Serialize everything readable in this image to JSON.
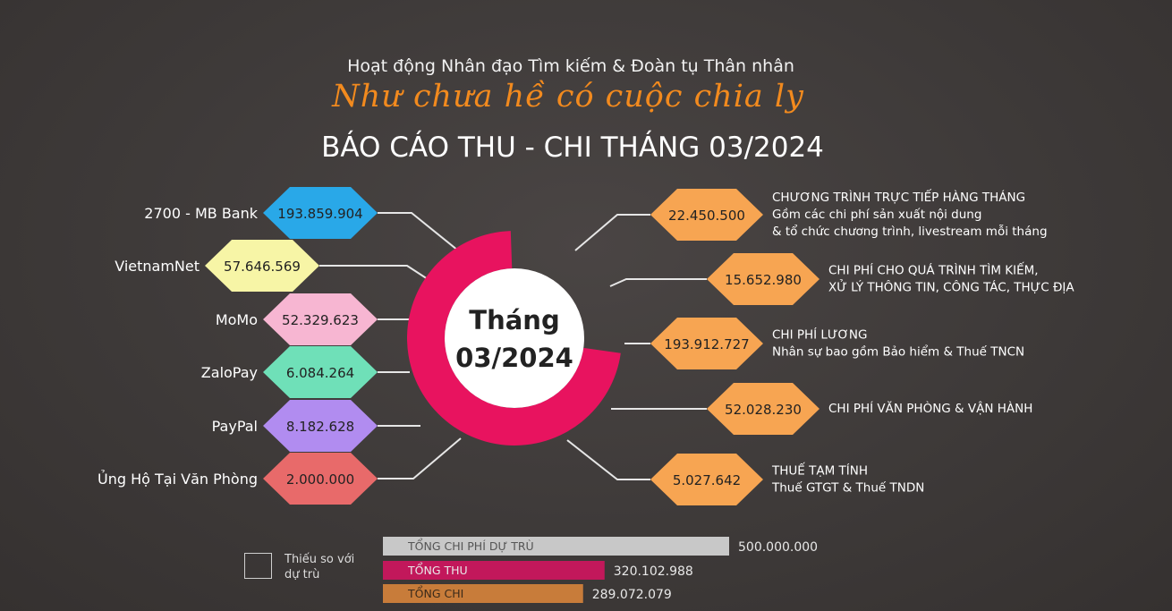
{
  "header": {
    "subtitle": "Hoạt động Nhân đạo Tìm kiếm & Đoàn tụ Thân nhân",
    "slogan": "Như chưa hề có cuộc chia ly",
    "title": "BÁO CÁO THU - CHI THÁNG 03/2024"
  },
  "center": {
    "line1": "Tháng",
    "line2": "03/2024"
  },
  "colors": {
    "ring": "#e8135f",
    "ring_dark": "#c10f52",
    "expense_hex": "#f7a552",
    "bar_plan": "#c8c8c8",
    "bar_income": "#c2185b",
    "bar_spend": "#c87c3a"
  },
  "chart_data": {
    "type": "table",
    "title": "BÁO CÁO THU - CHI THÁNG 03/2024",
    "income": [
      {
        "label": "2700 - MB Bank",
        "value": "193.859.904",
        "color": "#29a8e8"
      },
      {
        "label": "VietnamNet",
        "value": "57.646.569",
        "color": "#f7f5a6"
      },
      {
        "label": "MoMo",
        "value": "52.329.623",
        "color": "#f7b6d2"
      },
      {
        "label": "ZaloPay",
        "value": "6.084.264",
        "color": "#6fe0b8"
      },
      {
        "label": "PayPal",
        "value": "8.182.628",
        "color": "#b18cf0"
      },
      {
        "label": "Ủng Hộ  Tại Văn Phòng",
        "value": "2.000.000",
        "color": "#e86a6a"
      }
    ],
    "expenses": [
      {
        "value": "22.450.500",
        "line1": "CHƯƠNG TRÌNH TRỰC TIẾP HÀNG THÁNG",
        "line2": "Gồm các chi phí sản xuất nội dung",
        "line3": "& tổ chức chương trình, livestream mỗi tháng"
      },
      {
        "value": "15.652.980",
        "line1": "CHI PHÍ CHO QUÁ TRÌNH TÌM KIẾM,",
        "line2": "XỬ LÝ THÔNG TIN, CÔNG TÁC, THỰC ĐỊA",
        "line3": ""
      },
      {
        "value": "193.912.727",
        "line1": "CHI PHÍ LƯƠNG",
        "line2": "Nhân sự bao gồm Bảo hiểm & Thuế TNCN",
        "line3": ""
      },
      {
        "value": "52.028.230",
        "line1": "CHI PHÍ VĂN PHÒNG & VẬN HÀNH",
        "line2": "",
        "line3": ""
      },
      {
        "value": "5.027.642",
        "line1": "THUẾ TẠM TÍNH",
        "line2": "Thuế GTGT & Thuế TNDN",
        "line3": ""
      }
    ],
    "totals": [
      {
        "label": "TỔNG CHI PHÍ DỰ TRÙ",
        "value": "500.000.000",
        "amount": 500000000
      },
      {
        "label": "TỔNG THU",
        "value": "320.102.988",
        "amount": 320102988
      },
      {
        "label": "TỔNG CHI",
        "value": "289.072.079",
        "amount": 289072079
      }
    ]
  },
  "legend": {
    "label": "Thiếu so với dự trù"
  }
}
